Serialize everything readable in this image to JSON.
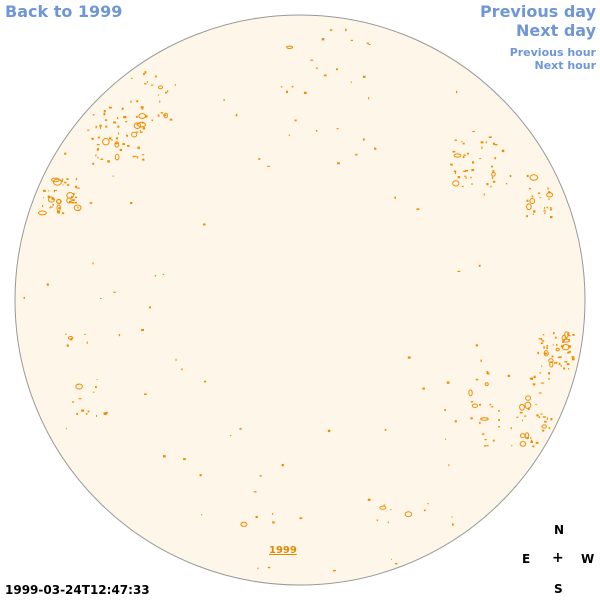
{
  "nav": {
    "back_label": "Back to 1999",
    "prev_day_label": "Previous day",
    "next_day_label": "Next day",
    "prev_hour_label": "Previous hour",
    "next_hour_label": "Next hour"
  },
  "sun_disk": {
    "fill_color": "#fef7e9",
    "border_color": "#999999",
    "contour_color": "#f08c00",
    "year_label": "1999"
  },
  "compass": {
    "n": "N",
    "e": "E",
    "plus": "+",
    "w": "W",
    "s": "S"
  },
  "timestamp": "1999-03-24T12:47:33"
}
